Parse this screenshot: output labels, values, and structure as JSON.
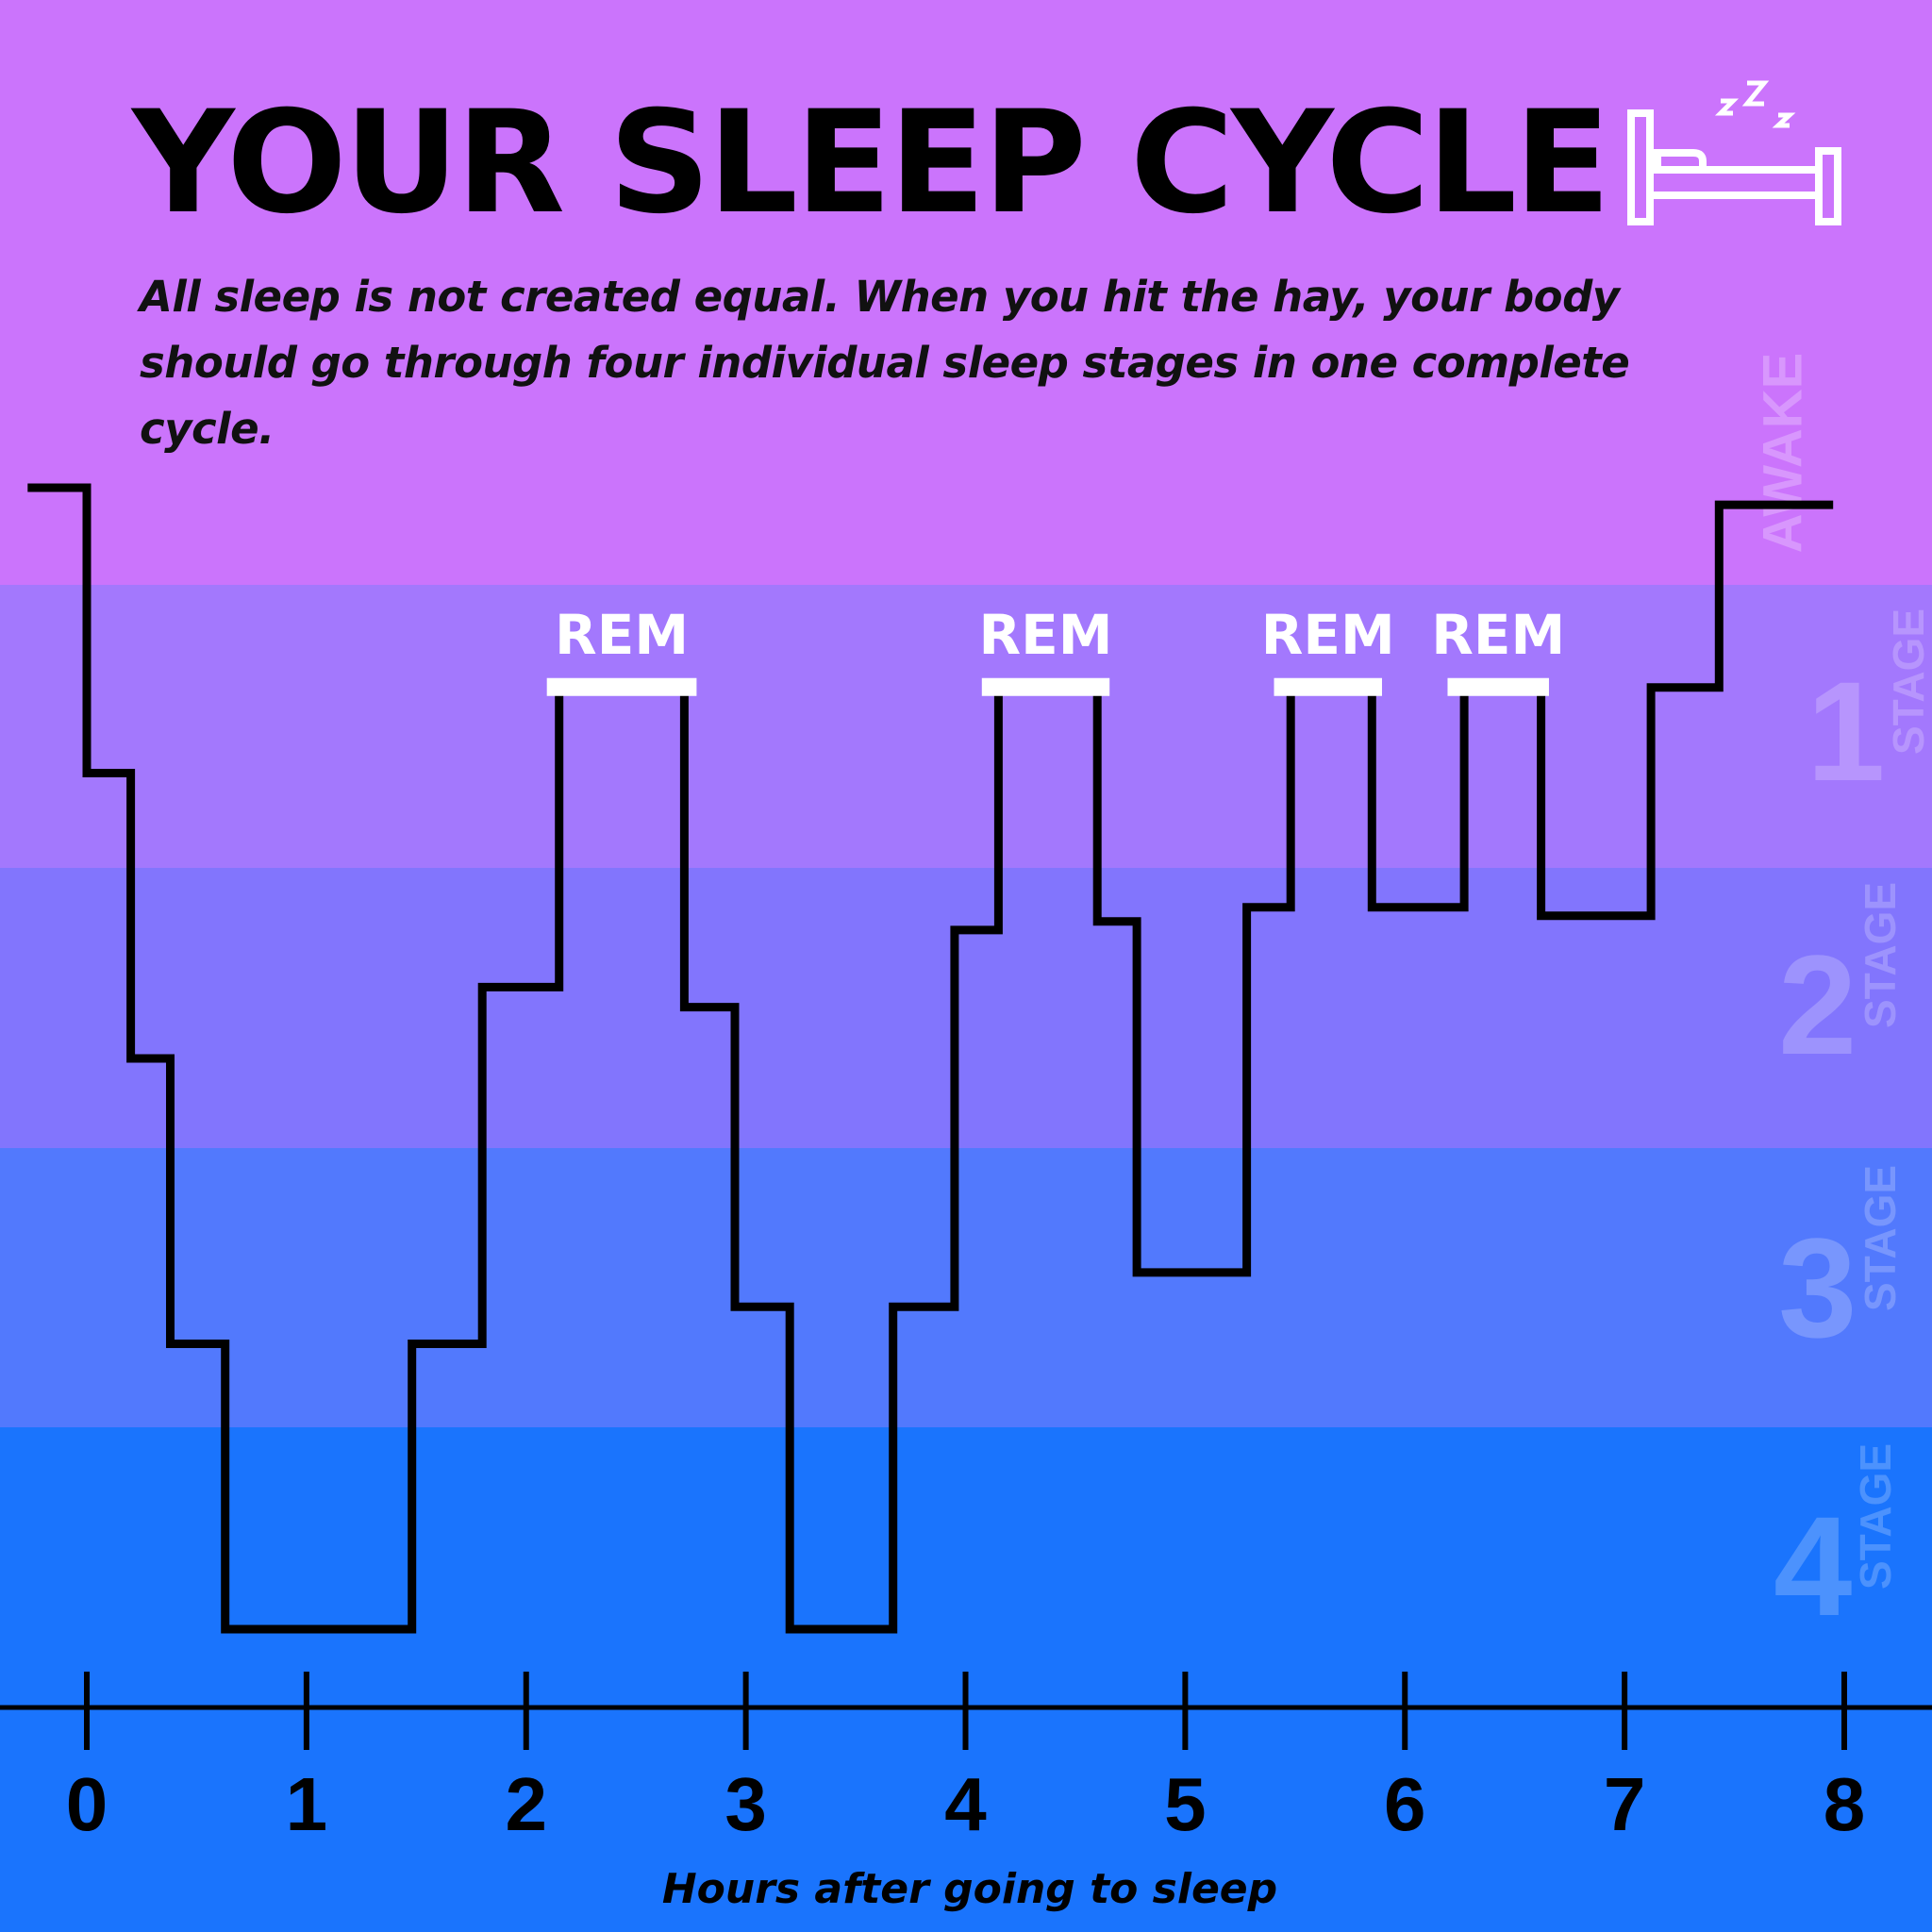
{
  "header": {
    "title": "YOUR SLEEP CYCLE",
    "subtitle": "All sleep is not created equal. When you hit the hay, your body should go through four individual sleep stages in one complete cycle."
  },
  "icons": {
    "bed": "bed-icon",
    "sleep_z": "zzz-icon"
  },
  "colors": {
    "awake_band": "#cb74fc",
    "stage1_band": "#a378fd",
    "stage2_band": "#8275fd",
    "stage3_band": "#5279fd",
    "stage4_band": "#1a74fd",
    "line": "#000000",
    "rem_bar": "#ffffff"
  },
  "stage_labels": {
    "awake": "AWAKE",
    "stage_word": "STAGE",
    "stages": [
      "1",
      "2",
      "3",
      "4"
    ]
  },
  "chart_data": {
    "type": "line",
    "step": true,
    "xlabel": "Hours after going to sleep",
    "xlim": [
      0,
      8
    ],
    "x_ticks": [
      "0",
      "1",
      "2",
      "3",
      "4",
      "5",
      "6",
      "7",
      "8"
    ],
    "y_levels": [
      "Awake",
      "Stage 1",
      "Stage 2",
      "Stage 3",
      "Stage 4"
    ],
    "y_level_values": [
      0,
      1,
      2,
      3,
      4
    ],
    "series": [
      {
        "points": [
          [
            -0.25,
            0
          ],
          [
            0,
            0
          ],
          [
            0,
            1.0
          ],
          [
            0.2,
            1.0
          ],
          [
            0.2,
            2.0
          ],
          [
            0.38,
            2.0
          ],
          [
            0.38,
            3.0
          ],
          [
            0.63,
            3.0
          ],
          [
            0.63,
            4.0
          ],
          [
            1.48,
            4.0
          ],
          [
            1.48,
            3.0
          ],
          [
            1.8,
            3.0
          ],
          [
            1.8,
            1.75
          ],
          [
            2.15,
            1.75
          ],
          [
            2.15,
            0.7
          ],
          [
            2.72,
            0.7
          ],
          [
            2.72,
            1.82
          ],
          [
            2.95,
            1.82
          ],
          [
            2.95,
            2.87
          ],
          [
            3.2,
            2.87
          ],
          [
            3.2,
            4.0
          ],
          [
            3.67,
            4.0
          ],
          [
            3.67,
            2.87
          ],
          [
            3.95,
            2.87
          ],
          [
            3.95,
            1.55
          ],
          [
            4.15,
            1.55
          ],
          [
            4.15,
            0.7
          ],
          [
            4.6,
            0.7
          ],
          [
            4.6,
            1.52
          ],
          [
            4.78,
            1.52
          ],
          [
            4.78,
            2.75
          ],
          [
            5.28,
            2.75
          ],
          [
            5.28,
            1.47
          ],
          [
            5.48,
            1.47
          ],
          [
            5.48,
            0.7
          ],
          [
            5.85,
            0.7
          ],
          [
            5.85,
            1.47
          ],
          [
            6.27,
            1.47
          ],
          [
            6.27,
            0.7
          ],
          [
            6.62,
            0.7
          ],
          [
            6.62,
            1.5
          ],
          [
            7.12,
            1.5
          ],
          [
            7.12,
            0.7
          ],
          [
            7.43,
            0.7
          ],
          [
            7.43,
            0.06
          ],
          [
            7.93,
            0.06
          ]
        ]
      }
    ],
    "rem_periods": [
      {
        "label": "REM",
        "start": 2.12,
        "end": 2.75
      },
      {
        "label": "REM",
        "start": 4.1,
        "end": 4.63
      },
      {
        "label": "REM",
        "start": 5.43,
        "end": 5.87
      },
      {
        "label": "REM",
        "start": 6.22,
        "end": 6.63
      }
    ]
  }
}
